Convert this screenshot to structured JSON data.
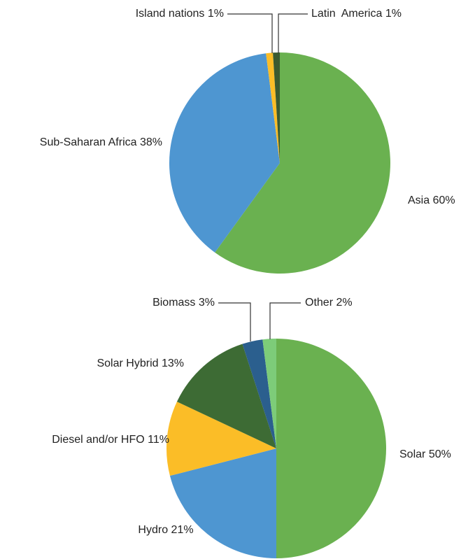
{
  "chart_data": [
    {
      "type": "pie",
      "categories": [
        "Asia",
        "Sub-Saharan Africa",
        "Island nations",
        "Latin  America"
      ],
      "values": [
        60,
        38,
        1,
        1
      ],
      "value_labels": [
        "60%",
        "38%",
        "1%",
        "1%"
      ],
      "colors": [
        "#6ab150",
        "#4e96d1",
        "#fbbd27",
        "#3a5a30"
      ]
    },
    {
      "type": "pie",
      "categories": [
        "Solar",
        "Hydro",
        "Diesel and/or HFO",
        "Solar Hybrid",
        "Biomass",
        "Other"
      ],
      "values": [
        50,
        21,
        11,
        13,
        3,
        2
      ],
      "value_labels": [
        "50%",
        "21%",
        "11%",
        "13%",
        "3%",
        "2%"
      ],
      "colors": [
        "#6ab150",
        "#4e96d1",
        "#fbbd27",
        "#3d6b34",
        "#2b5f8e",
        "#7dcc79"
      ]
    }
  ]
}
